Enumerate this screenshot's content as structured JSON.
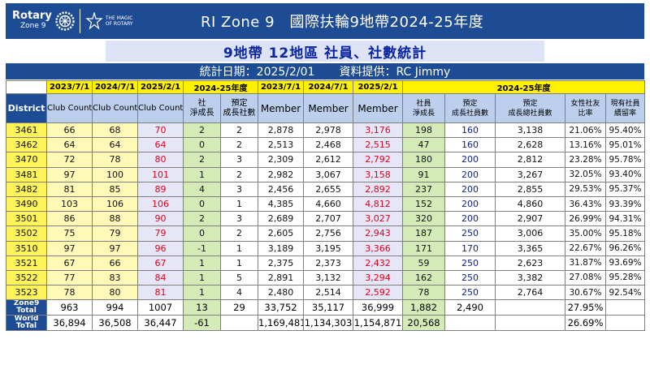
{
  "header": {
    "rotary": "Rotary",
    "zone": "Zone 9",
    "magic_line1": "THE MAGIC",
    "magic_line2": "OF ROTARY",
    "title": "RI Zone 9　國際扶輪9地帶2024-25年度"
  },
  "subtitle": "9地帶 12地區 社員、社數統計",
  "info": {
    "date": "統計日期：2025/2/01",
    "provider": "資料提供：RC Jimmy"
  },
  "colors": {
    "header_blue": "#1d4b94",
    "highlight_yellow": "#fff200",
    "value_red": "#e0001b"
  },
  "table": {
    "group_headers": [
      "2023/7/1",
      "2024/7/1",
      "2025/2/1",
      "2024-25年度",
      "2023/7/1",
      "2024/7/1",
      "2025/2/1",
      "2024-25年度"
    ],
    "columns": [
      "District",
      "Club Count",
      "Club Count",
      "Club Count",
      "社\n淨成長",
      "預定\n成長社數",
      "Member",
      "Member",
      "Member",
      "社員\n淨成長",
      "預定\n成長社員數",
      "預定\n成長總社員數",
      "女性社友\n比率",
      "現有社員\n續留率"
    ],
    "rows": [
      [
        "3461",
        "66",
        "68",
        "70",
        "2",
        "2",
        "2,878",
        "2,978",
        "3,176",
        "198",
        "160",
        "3,138",
        "21.06%",
        "95.40%"
      ],
      [
        "3462",
        "64",
        "64",
        "64",
        "0",
        "2",
        "2,513",
        "2,468",
        "2,515",
        "47",
        "160",
        "2,628",
        "13.16%",
        "95.01%"
      ],
      [
        "3470",
        "72",
        "78",
        "80",
        "2",
        "3",
        "2,309",
        "2,612",
        "2,792",
        "180",
        "200",
        "2,812",
        "23.28%",
        "95.78%"
      ],
      [
        "3481",
        "97",
        "100",
        "101",
        "1",
        "2",
        "2,982",
        "3,067",
        "3,158",
        "91",
        "200",
        "3,267",
        "32.05%",
        "93.40%"
      ],
      [
        "3482",
        "81",
        "85",
        "89",
        "4",
        "3",
        "2,456",
        "2,655",
        "2,892",
        "237",
        "200",
        "2,855",
        "29.53%",
        "95.37%"
      ],
      [
        "3490",
        "103",
        "106",
        "106",
        "0",
        "1",
        "4,385",
        "4,660",
        "4,812",
        "152",
        "200",
        "4,860",
        "36.43%",
        "93.39%"
      ],
      [
        "3501",
        "86",
        "88",
        "90",
        "2",
        "3",
        "2,689",
        "2,707",
        "3,027",
        "320",
        "200",
        "2,907",
        "26.99%",
        "94.31%"
      ],
      [
        "3502",
        "75",
        "79",
        "79",
        "0",
        "2",
        "2,605",
        "2,756",
        "2,943",
        "187",
        "250",
        "3,006",
        "35.00%",
        "95.18%"
      ],
      [
        "3510",
        "97",
        "97",
        "96",
        "-1",
        "1",
        "3,189",
        "3,195",
        "3,366",
        "171",
        "170",
        "3,365",
        "22.67%",
        "96.26%"
      ],
      [
        "3521",
        "67",
        "66",
        "67",
        "1",
        "1",
        "2,375",
        "2,373",
        "2,432",
        "59",
        "250",
        "2,623",
        "31.87%",
        "93.69%"
      ],
      [
        "3522",
        "77",
        "83",
        "84",
        "1",
        "5",
        "2,891",
        "3,132",
        "3,294",
        "162",
        "250",
        "3,382",
        "27.08%",
        "95.28%"
      ],
      [
        "3523",
        "78",
        "80",
        "81",
        "1",
        "4",
        "2,480",
        "2,514",
        "2,592",
        "78",
        "250",
        "2,764",
        "30.67%",
        "92.54%"
      ]
    ],
    "totals": [
      [
        "Zone9\nTotal",
        "963",
        "994",
        "1007",
        "13",
        "29",
        "33,752",
        "35,117",
        "36,999",
        "1,882",
        "2,490",
        "",
        "27.95%",
        ""
      ],
      [
        "World\nToTal",
        "36,894",
        "36,508",
        "36,447",
        "-61",
        "",
        "1,169,481",
        "1,134,303",
        "1,154,871",
        "20,568",
        "",
        "",
        "26.69%",
        ""
      ]
    ]
  }
}
